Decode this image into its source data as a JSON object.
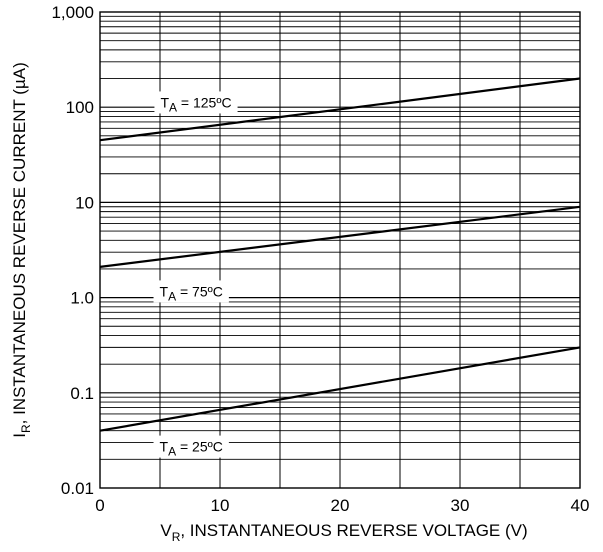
{
  "chart_data": {
    "type": "line",
    "xlabel": {
      "main": "V",
      "sub": "R",
      "rest": ", INSTANTANEOUS REVERSE VOLTAGE (V)"
    },
    "ylabel": {
      "main": "I",
      "sub": "R",
      "rest": ", INSTANTANEOUS REVERSE CURRENT (µA)"
    },
    "xlim": [
      0,
      40
    ],
    "ylim": [
      0.01,
      1000
    ],
    "yscale": "log",
    "grid": true,
    "x_ticks": [
      "0",
      "10",
      "20",
      "30",
      "40"
    ],
    "y_ticks": [
      "0.01",
      "0.1",
      "1.0",
      "10",
      "100",
      "1,000"
    ],
    "series": [
      {
        "label": {
          "main": "T",
          "sub": "A",
          "rest": " = 125ºC"
        },
        "x": [
          0,
          40
        ],
        "y": [
          45,
          200
        ]
      },
      {
        "label": {
          "main": "T",
          "sub": "A",
          "rest": " = 75ºC"
        },
        "x": [
          0,
          40
        ],
        "y": [
          2.1,
          9
        ]
      },
      {
        "label": {
          "main": "T",
          "sub": "A",
          "rest": " = 25ºC"
        },
        "x": [
          0,
          40
        ],
        "y": [
          0.04,
          0.3
        ]
      }
    ]
  }
}
